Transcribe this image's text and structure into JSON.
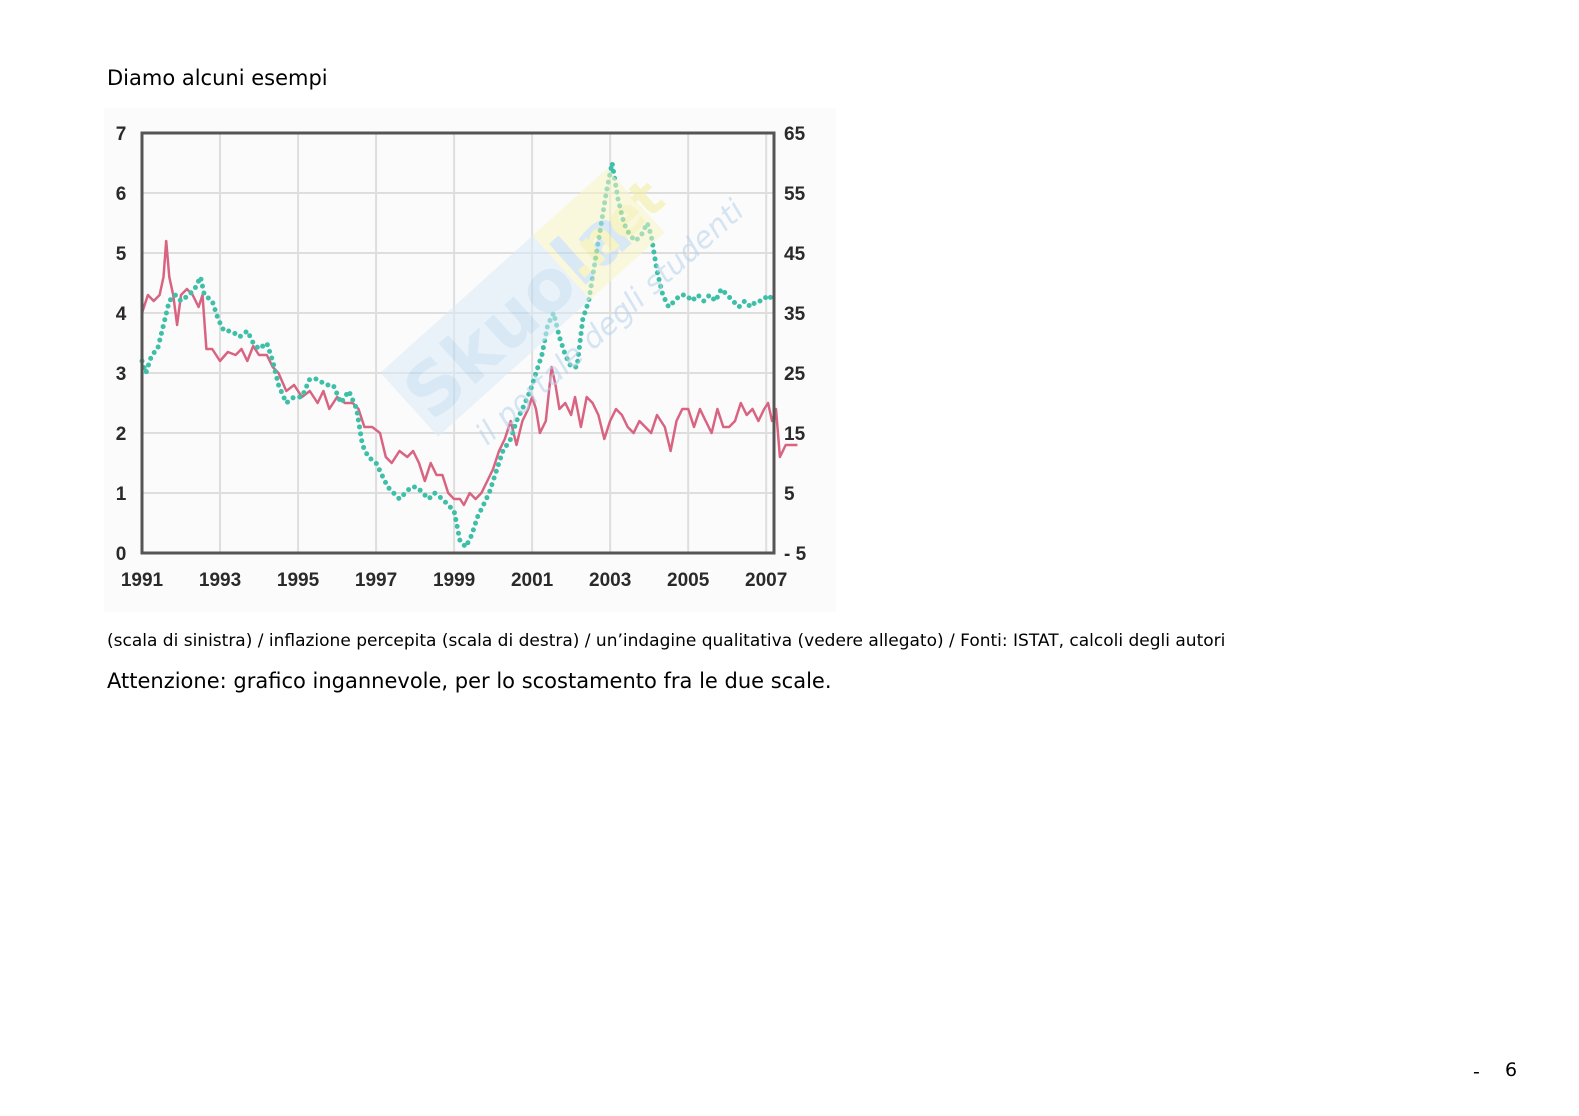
{
  "heading": "Diamo alcuni esempi",
  "watermark": {
    "brand": "Skuola",
    "suffix": ".net",
    "tagline": "il portale degli studenti",
    "colors": {
      "brand": "#bcd9f0",
      "suffix": "#f3ed9c",
      "tagline": "#b5d3ee"
    }
  },
  "caption": "(scala di sinistra) / inflazione percepita (scala di destra) / un’indagine qualitativa (vedere allegato) / Fonti: ISTAT, calcoli degli autori",
  "note": "Attenzione: grafico ingannevole, per lo scostamento fra le due scale.",
  "page_number": {
    "dash": "-",
    "number": "6"
  },
  "chart_data": {
    "type": "line",
    "x_ticks": [
      "1991",
      "1993",
      "1995",
      "1997",
      "1999",
      "2001",
      "2003",
      "2005",
      "2007"
    ],
    "xlim": [
      1991,
      2007.2
    ],
    "y_left": {
      "lim": [
        0,
        7
      ],
      "ticks": [
        "0",
        "1",
        "2",
        "3",
        "4",
        "5",
        "6",
        "7"
      ]
    },
    "y_right": {
      "lim": [
        -5,
        65
      ],
      "ticks": [
        "- 5",
        "5",
        "15",
        "25",
        "35",
        "45",
        "55",
        "65"
      ]
    },
    "grid": true,
    "colors": {
      "measured": "#d96482",
      "perceived": "#3dbfa8",
      "grid": "#dedede",
      "frame": "#555555"
    },
    "series": [
      {
        "axis": "left",
        "style": "solid",
        "points": [
          [
            1991.0,
            4.0
          ],
          [
            1991.15,
            4.3
          ],
          [
            1991.3,
            4.2
          ],
          [
            1991.45,
            4.3
          ],
          [
            1991.55,
            4.6
          ],
          [
            1991.62,
            5.2
          ],
          [
            1991.7,
            4.6
          ],
          [
            1991.8,
            4.3
          ],
          [
            1991.9,
            3.8
          ],
          [
            1992.0,
            4.3
          ],
          [
            1992.15,
            4.4
          ],
          [
            1992.3,
            4.3
          ],
          [
            1992.45,
            4.1
          ],
          [
            1992.55,
            4.3
          ],
          [
            1992.65,
            3.4
          ],
          [
            1992.8,
            3.4
          ],
          [
            1993.0,
            3.2
          ],
          [
            1993.2,
            3.35
          ],
          [
            1993.4,
            3.3
          ],
          [
            1993.55,
            3.4
          ],
          [
            1993.7,
            3.2
          ],
          [
            1993.85,
            3.45
          ],
          [
            1994.0,
            3.3
          ],
          [
            1994.2,
            3.3
          ],
          [
            1994.35,
            3.1
          ],
          [
            1994.5,
            3.0
          ],
          [
            1994.7,
            2.7
          ],
          [
            1994.9,
            2.8
          ],
          [
            1995.1,
            2.6
          ],
          [
            1995.3,
            2.7
          ],
          [
            1995.5,
            2.5
          ],
          [
            1995.65,
            2.7
          ],
          [
            1995.8,
            2.4
          ],
          [
            1996.0,
            2.6
          ],
          [
            1996.2,
            2.5
          ],
          [
            1996.4,
            2.5
          ],
          [
            1996.55,
            2.4
          ],
          [
            1996.7,
            2.1
          ],
          [
            1996.9,
            2.1
          ],
          [
            1997.1,
            2.0
          ],
          [
            1997.25,
            1.6
          ],
          [
            1997.4,
            1.5
          ],
          [
            1997.6,
            1.7
          ],
          [
            1997.8,
            1.6
          ],
          [
            1997.95,
            1.7
          ],
          [
            1998.1,
            1.5
          ],
          [
            1998.25,
            1.2
          ],
          [
            1998.4,
            1.5
          ],
          [
            1998.55,
            1.3
          ],
          [
            1998.7,
            1.3
          ],
          [
            1998.85,
            1.0
          ],
          [
            1999.0,
            0.9
          ],
          [
            1999.15,
            0.9
          ],
          [
            1999.25,
            0.8
          ],
          [
            1999.4,
            1.0
          ],
          [
            1999.55,
            0.9
          ],
          [
            1999.7,
            1.0
          ],
          [
            1999.85,
            1.2
          ],
          [
            2000.0,
            1.4
          ],
          [
            2000.15,
            1.7
          ],
          [
            2000.3,
            1.9
          ],
          [
            2000.45,
            2.2
          ],
          [
            2000.6,
            1.8
          ],
          [
            2000.75,
            2.2
          ],
          [
            2000.9,
            2.4
          ],
          [
            2001.0,
            2.6
          ],
          [
            2001.1,
            2.4
          ],
          [
            2001.2,
            2.0
          ],
          [
            2001.35,
            2.2
          ],
          [
            2001.5,
            3.1
          ],
          [
            2001.6,
            2.8
          ],
          [
            2001.7,
            2.4
          ],
          [
            2001.85,
            2.5
          ],
          [
            2002.0,
            2.3
          ],
          [
            2002.1,
            2.6
          ],
          [
            2002.25,
            2.1
          ],
          [
            2002.4,
            2.6
          ],
          [
            2002.55,
            2.5
          ],
          [
            2002.7,
            2.3
          ],
          [
            2002.85,
            1.9
          ],
          [
            2003.0,
            2.2
          ],
          [
            2003.15,
            2.4
          ],
          [
            2003.3,
            2.3
          ],
          [
            2003.45,
            2.1
          ],
          [
            2003.6,
            2.0
          ],
          [
            2003.75,
            2.2
          ],
          [
            2003.9,
            2.1
          ],
          [
            2004.05,
            2.0
          ],
          [
            2004.2,
            2.3
          ],
          [
            2004.4,
            2.1
          ],
          [
            2004.55,
            1.7
          ],
          [
            2004.7,
            2.2
          ],
          [
            2004.85,
            2.4
          ],
          [
            2005.0,
            2.4
          ],
          [
            2005.15,
            2.1
          ],
          [
            2005.3,
            2.4
          ],
          [
            2005.45,
            2.2
          ],
          [
            2005.6,
            2.0
          ],
          [
            2005.75,
            2.4
          ],
          [
            2005.9,
            2.1
          ],
          [
            2006.05,
            2.1
          ],
          [
            2006.2,
            2.2
          ],
          [
            2006.35,
            2.5
          ],
          [
            2006.5,
            2.3
          ],
          [
            2006.65,
            2.4
          ],
          [
            2006.8,
            2.2
          ],
          [
            2006.95,
            2.4
          ],
          [
            2007.05,
            2.5
          ],
          [
            2007.15,
            2.2
          ],
          [
            2007.25,
            2.4
          ],
          [
            2007.35,
            1.6
          ],
          [
            2007.5,
            1.8
          ],
          [
            2007.7,
            1.8
          ],
          [
            2007.8,
            1.8
          ]
        ]
      },
      {
        "axis": "right",
        "style": "dotted",
        "points": [
          [
            1991.0,
            27
          ],
          [
            1991.1,
            25
          ],
          [
            1991.25,
            28
          ],
          [
            1991.4,
            29
          ],
          [
            1991.55,
            33
          ],
          [
            1991.7,
            37
          ],
          [
            1991.85,
            38
          ],
          [
            1992.0,
            37
          ],
          [
            1992.2,
            38
          ],
          [
            1992.35,
            39
          ],
          [
            1992.5,
            41
          ],
          [
            1992.6,
            38
          ],
          [
            1992.8,
            37
          ],
          [
            1992.95,
            34
          ],
          [
            1993.1,
            32
          ],
          [
            1993.3,
            32
          ],
          [
            1993.5,
            31
          ],
          [
            1993.7,
            32
          ],
          [
            1993.85,
            30
          ],
          [
            1994.0,
            29
          ],
          [
            1994.2,
            30
          ],
          [
            1994.35,
            27
          ],
          [
            1994.5,
            23
          ],
          [
            1994.7,
            20
          ],
          [
            1994.9,
            21
          ],
          [
            1995.1,
            21
          ],
          [
            1995.3,
            24
          ],
          [
            1995.5,
            24
          ],
          [
            1995.7,
            23
          ],
          [
            1995.9,
            23
          ],
          [
            1996.1,
            20
          ],
          [
            1996.3,
            22
          ],
          [
            1996.5,
            19
          ],
          [
            1996.65,
            13
          ],
          [
            1996.8,
            11
          ],
          [
            1997.0,
            10
          ],
          [
            1997.15,
            8
          ],
          [
            1997.3,
            6
          ],
          [
            1997.45,
            5
          ],
          [
            1997.6,
            4
          ],
          [
            1997.75,
            5
          ],
          [
            1997.9,
            6
          ],
          [
            1998.05,
            6
          ],
          [
            1998.2,
            5
          ],
          [
            1998.35,
            4
          ],
          [
            1998.5,
            5
          ],
          [
            1998.7,
            4
          ],
          [
            1998.85,
            3
          ],
          [
            1999.0,
            2
          ],
          [
            1999.15,
            -3
          ],
          [
            1999.3,
            -4
          ],
          [
            1999.45,
            -2
          ],
          [
            1999.6,
            1
          ],
          [
            1999.75,
            3
          ],
          [
            1999.9,
            5
          ],
          [
            2000.1,
            9
          ],
          [
            2000.25,
            12
          ],
          [
            2000.45,
            14
          ],
          [
            2000.6,
            17
          ],
          [
            2000.75,
            19
          ],
          [
            2000.95,
            22
          ],
          [
            2001.1,
            25
          ],
          [
            2001.25,
            28
          ],
          [
            2001.4,
            33
          ],
          [
            2001.55,
            35
          ],
          [
            2001.7,
            31
          ],
          [
            2001.85,
            28
          ],
          [
            2002.0,
            26
          ],
          [
            2002.15,
            26
          ],
          [
            2002.3,
            34
          ],
          [
            2002.45,
            37
          ],
          [
            2002.6,
            43
          ],
          [
            2002.75,
            49
          ],
          [
            2002.9,
            55
          ],
          [
            2003.05,
            60
          ],
          [
            2003.2,
            54
          ],
          [
            2003.35,
            50
          ],
          [
            2003.5,
            48
          ],
          [
            2003.65,
            47
          ],
          [
            2003.8,
            48
          ],
          [
            2003.95,
            50
          ],
          [
            2004.05,
            48
          ],
          [
            2004.2,
            42
          ],
          [
            2004.35,
            38
          ],
          [
            2004.5,
            36
          ],
          [
            2004.65,
            37
          ],
          [
            2004.8,
            38
          ],
          [
            2004.95,
            38
          ],
          [
            2005.1,
            37
          ],
          [
            2005.25,
            38
          ],
          [
            2005.4,
            37
          ],
          [
            2005.55,
            38
          ],
          [
            2005.7,
            37
          ],
          [
            2005.85,
            39
          ],
          [
            2006.0,
            38
          ],
          [
            2006.15,
            37
          ],
          [
            2006.3,
            36
          ],
          [
            2006.45,
            37
          ],
          [
            2006.6,
            36
          ],
          [
            2006.75,
            37
          ],
          [
            2006.9,
            37
          ],
          [
            2007.05,
            38
          ],
          [
            2007.2,
            37
          ]
        ]
      }
    ]
  }
}
